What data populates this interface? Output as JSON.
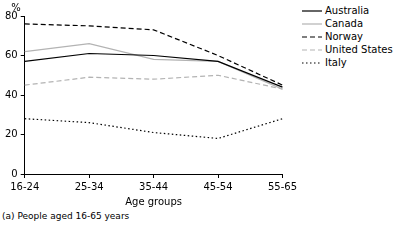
{
  "chart_data": {
    "type": "line",
    "x_label": "Age groups",
    "y_label": "%",
    "annotations": [
      "(a) People aged 16-65 years"
    ],
    "categories": [
      "16-24",
      "25-34",
      "35-44",
      "45-54",
      "55-65"
    ],
    "series": [
      {
        "name": "Australia",
        "color": "#000000",
        "line_style": "solid",
        "values": [
          57,
          61,
          60,
          57,
          44
        ]
      },
      {
        "name": "Canada",
        "color": "#b3b3b3",
        "line_style": "solid",
        "values": [
          62,
          66,
          58,
          57,
          43
        ]
      },
      {
        "name": "Norway",
        "color": "#000000",
        "line_style": "dashed",
        "values": [
          76,
          75,
          73,
          60,
          45
        ]
      },
      {
        "name": "United States",
        "color": "#b3b3b3",
        "line_style": "dashed",
        "values": [
          45,
          49,
          48,
          50,
          43
        ]
      },
      {
        "name": "Italy",
        "color": "#000000",
        "line_style": "dotted",
        "values": [
          28,
          26,
          21,
          18,
          28
        ]
      }
    ],
    "ylim": [
      0,
      80
    ],
    "yticks": [
      0,
      20,
      40,
      60,
      80
    ],
    "grid": false,
    "legend": "right"
  }
}
